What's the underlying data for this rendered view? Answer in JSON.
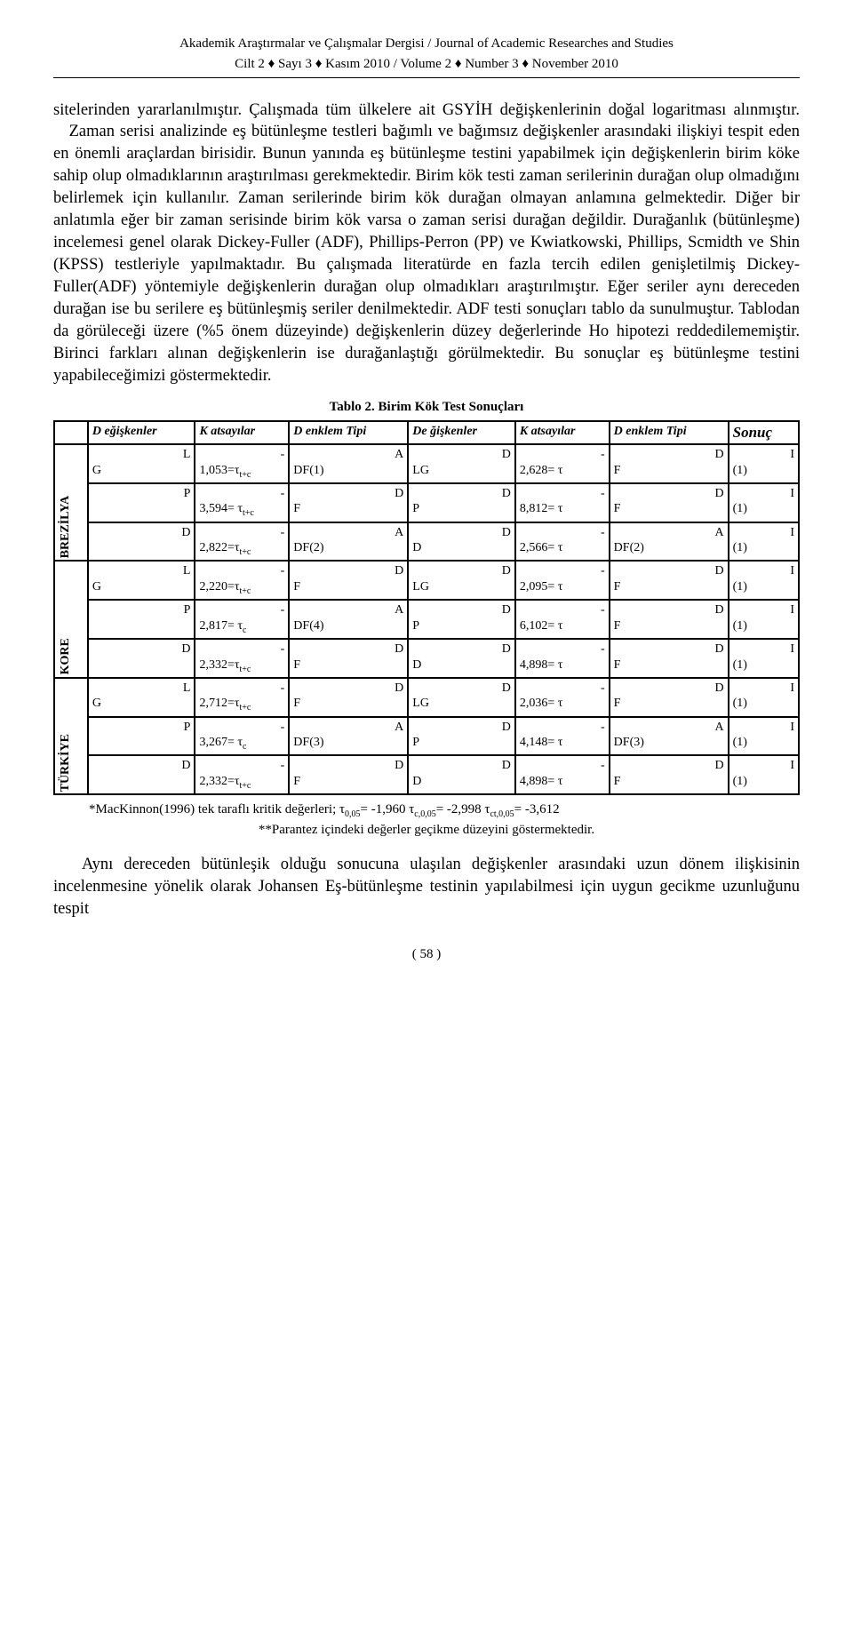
{
  "header": {
    "line1": "Akademik Araştırmalar ve Çalışmalar Dergisi  / Journal of Academic Researches and Studies",
    "line2": "Cilt 2 ♦ Sayı 3 ♦ Kasım 2010  /  Volume 2 ♦ Number 3 ♦ November 2010"
  },
  "paragraph": "sitelerinden yararlanılmıştır. Çalışmada tüm ülkelere ait GSYİH değişkenlerinin doğal logaritması alınmıştır.\n   Zaman serisi analizinde eş bütünleşme testleri bağımlı ve bağımsız değişkenler arasındaki ilişkiyi tespit eden en önemli araçlardan birisidir. Bunun yanında eş bütünleşme testini yapabilmek için değişkenlerin birim köke sahip olup olmadıklarının araştırılması gerekmektedir. Birim kök testi zaman serilerinin durağan olup olmadığını belirlemek için kullanılır. Zaman serilerinde birim kök durağan olmayan anlamına gelmektedir. Diğer bir anlatımla eğer bir zaman serisinde birim kök varsa o zaman serisi durağan değildir. Durağanlık (bütünleşme) incelemesi genel olarak Dickey-Fuller (ADF), Phillips-Perron (PP) ve Kwiatkowski, Phillips, Scmidth ve Shin (KPSS) testleriyle yapılmaktadır. Bu çalışmada literatürde en fazla tercih edilen genişletilmiş Dickey-Fuller(ADF) yöntemiyle değişkenlerin durağan olup olmadıkları araştırılmıştır. Eğer seriler aynı dereceden durağan ise bu serilere eş bütünleşmiş seriler denilmektedir. ADF testi sonuçları tablo da sunulmuştur. Tablodan da görüleceği üzere (%5 önem düzeyinde) değişkenlerin düzey değerlerinde Ho hipotezi reddedilememiştir. Birinci farkları alınan değişkenlerin ise durağanlaştığı görülmektedir. Bu sonuçlar eş bütünleşme testini yapabileceğimizi göstermektedir.",
  "table": {
    "caption": "Tablo 2. Birim Kök Test Sonuçları",
    "headers": {
      "c1": "D eğişkenler",
      "c2": "K atsayılar",
      "c3": "D enklem Tipi",
      "c4": "De ğişkenler",
      "c5": "K atsayılar",
      "c6": "D enklem Tipi",
      "c7": "Sonuç"
    },
    "groups": [
      {
        "label": "BREZİLYA",
        "rows": [
          {
            "v1a": "L",
            "v1b": "G",
            "k1a": "-",
            "k1b": "1,053=τ",
            "k1s": "t+c",
            "d1a": "A",
            "d1b": "DF(1)",
            "v2a": "D",
            "v2b": "LG",
            "k2a": "-",
            "k2b": "2,628= τ",
            "d2a": "D",
            "d2b": "F",
            "s": "I (1)"
          },
          {
            "v1a": "P",
            "v1b": "",
            "k1a": "-",
            "k1b": "3,594= τ",
            "k1s": "t+c",
            "d1a": "D",
            "d1b": "F",
            "v2a": "D",
            "v2b": "P",
            "k2a": "-",
            "k2b": "8,812= τ",
            "d2a": "D",
            "d2b": "F",
            "s": "I (1)"
          },
          {
            "v1a": "D",
            "v1b": "",
            "k1a": "-",
            "k1b": "2,822=τ",
            "k1s": "t+c",
            "d1a": "A",
            "d1b": "DF(2)",
            "v2a": "D",
            "v2b": "D",
            "k2a": "-",
            "k2b": "2,566= τ",
            "d2a": "A",
            "d2b": "DF(2)",
            "s": "I (1)"
          }
        ]
      },
      {
        "label": "KORE",
        "rows": [
          {
            "v1a": "L",
            "v1b": "G",
            "k1a": "-",
            "k1b": "2,220=τ",
            "k1s": "t+c",
            "d1a": "D",
            "d1b": "F",
            "v2a": "D",
            "v2b": "LG",
            "k2a": "-",
            "k2b": "2,095= τ",
            "d2a": "D",
            "d2b": "F",
            "s": "I (1)"
          },
          {
            "v1a": "P",
            "v1b": "",
            "k1a": "-",
            "k1b": "2,817= τ",
            "k1s": "c",
            "d1a": "A",
            "d1b": "DF(4)",
            "v2a": "D",
            "v2b": "P",
            "k2a": "-",
            "k2b": "6,102= τ",
            "d2a": "D",
            "d2b": "F",
            "s": "I (1)"
          },
          {
            "v1a": "D",
            "v1b": "",
            "k1a": "-",
            "k1b": "2,332=τ",
            "k1s": "t+c",
            "d1a": "D",
            "d1b": "F",
            "v2a": "D",
            "v2b": "D",
            "k2a": "-",
            "k2b": "4,898= τ",
            "d2a": "D",
            "d2b": "F",
            "s": "I (1)"
          }
        ]
      },
      {
        "label": "TÜRKİYE",
        "rows": [
          {
            "v1a": "L",
            "v1b": "G",
            "k1a": "-",
            "k1b": "2,712=τ",
            "k1s": "t+c",
            "d1a": "D",
            "d1b": "F",
            "v2a": "D",
            "v2b": "LG",
            "k2a": "-",
            "k2b": "2,036= τ",
            "d2a": "D",
            "d2b": "F",
            "s": "I (1)"
          },
          {
            "v1a": "P",
            "v1b": "",
            "k1a": "-",
            "k1b": "3,267= τ",
            "k1s": "c",
            "d1a": "A",
            "d1b": "DF(3)",
            "v2a": "D",
            "v2b": "P",
            "k2a": "-",
            "k2b": "4,148= τ",
            "d2a": "A",
            "d2b": "DF(3)",
            "s": "I (1)"
          },
          {
            "v1a": "D",
            "v1b": "",
            "k1a": "-",
            "k1b": "2,332=τ",
            "k1s": "t+c",
            "d1a": "D",
            "d1b": "F",
            "v2a": "D",
            "v2b": "D",
            "k2a": "-",
            "k2b": "4,898= τ",
            "d2a": "D",
            "d2b": "F",
            "s": "I (1)"
          }
        ]
      }
    ]
  },
  "footnote1_a": "*MacKinnon(1996) tek taraflı kritik değerleri; τ",
  "footnote1_sub1": "0,05",
  "footnote1_b": "= -1,960      τ",
  "footnote1_sub2": "c,0,05",
  "footnote1_c": "= -2,998   τ",
  "footnote1_sub3": "ct,0,05",
  "footnote1_d": "= -3,612",
  "footnote2": "**Parantez içindeki değerler geçikme düzeyini göstermektedir.",
  "para2": "Aynı dereceden bütünleşik olduğu sonucuna ulaşılan değişkenler arasındaki uzun dönem ilişkisinin incelenmesine yönelik olarak Johansen Eş-bütünleşme testinin yapılabilmesi için uygun gecikme uzunluğunu tespit",
  "pagenum": "( 58 )"
}
